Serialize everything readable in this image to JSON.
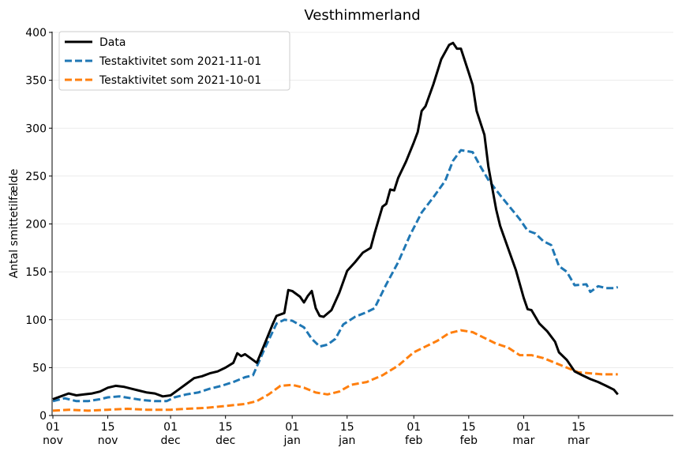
{
  "chart_data": {
    "type": "line",
    "title": "Vesthimmerland",
    "xlabel": "",
    "ylabel": "Antal smittetilfælde",
    "x_start": "2021-11-01",
    "x_end": "2022-03-25",
    "ylim": [
      0,
      405
    ],
    "grid": "horizontal",
    "legend_position": "top-left",
    "y_ticks": [
      0,
      50,
      100,
      150,
      200,
      250,
      300,
      350,
      400
    ],
    "x_ticks": [
      {
        "date": "2021-11-01",
        "day": "01",
        "month": "nov"
      },
      {
        "date": "2021-11-15",
        "day": "15",
        "month": "nov"
      },
      {
        "date": "2021-12-01",
        "day": "01",
        "month": "dec"
      },
      {
        "date": "2021-12-15",
        "day": "15",
        "month": "dec"
      },
      {
        "date": "2022-01-01",
        "day": "01",
        "month": "jan"
      },
      {
        "date": "2022-01-15",
        "day": "15",
        "month": "jan"
      },
      {
        "date": "2022-02-01",
        "day": "01",
        "month": "feb"
      },
      {
        "date": "2022-02-15",
        "day": "15",
        "month": "feb"
      },
      {
        "date": "2022-03-01",
        "day": "01",
        "month": "mar"
      },
      {
        "date": "2022-03-15",
        "day": "15",
        "month": "mar"
      }
    ],
    "series": [
      {
        "name": "Data",
        "color": "#000000",
        "dash": "solid",
        "points": [
          [
            "2021-11-01",
            17
          ],
          [
            "2021-11-03",
            20
          ],
          [
            "2021-11-05",
            23
          ],
          [
            "2021-11-07",
            21
          ],
          [
            "2021-11-09",
            22
          ],
          [
            "2021-11-11",
            23
          ],
          [
            "2021-11-13",
            25
          ],
          [
            "2021-11-15",
            29
          ],
          [
            "2021-11-17",
            31
          ],
          [
            "2021-11-19",
            30
          ],
          [
            "2021-11-21",
            28
          ],
          [
            "2021-11-23",
            26
          ],
          [
            "2021-11-25",
            24
          ],
          [
            "2021-11-27",
            23
          ],
          [
            "2021-11-29",
            20
          ],
          [
            "2021-12-01",
            21
          ],
          [
            "2021-12-03",
            27
          ],
          [
            "2021-12-05",
            33
          ],
          [
            "2021-12-07",
            39
          ],
          [
            "2021-12-09",
            41
          ],
          [
            "2021-12-11",
            44
          ],
          [
            "2021-12-13",
            46
          ],
          [
            "2021-12-15",
            50
          ],
          [
            "2021-12-17",
            55
          ],
          [
            "2021-12-18",
            65
          ],
          [
            "2021-12-19",
            62
          ],
          [
            "2021-12-20",
            64
          ],
          [
            "2021-12-22",
            58
          ],
          [
            "2021-12-23",
            55
          ],
          [
            "2021-12-25",
            75
          ],
          [
            "2021-12-27",
            95
          ],
          [
            "2021-12-28",
            104
          ],
          [
            "2021-12-30",
            107
          ],
          [
            "2021-12-31",
            131
          ],
          [
            "2022-01-01",
            130
          ],
          [
            "2022-01-03",
            124
          ],
          [
            "2022-01-04",
            118
          ],
          [
            "2022-01-05",
            125
          ],
          [
            "2022-01-06",
            130
          ],
          [
            "2022-01-07",
            112
          ],
          [
            "2022-01-08",
            104
          ],
          [
            "2022-01-09",
            103
          ],
          [
            "2022-01-11",
            110
          ],
          [
            "2022-01-13",
            128
          ],
          [
            "2022-01-15",
            151
          ],
          [
            "2022-01-17",
            160
          ],
          [
            "2022-01-19",
            170
          ],
          [
            "2022-01-21",
            175
          ],
          [
            "2022-01-22",
            190
          ],
          [
            "2022-01-24",
            218
          ],
          [
            "2022-01-25",
            221
          ],
          [
            "2022-01-26",
            236
          ],
          [
            "2022-01-27",
            235
          ],
          [
            "2022-01-28",
            248
          ],
          [
            "2022-01-30",
            265
          ],
          [
            "2022-02-01",
            285
          ],
          [
            "2022-02-02",
            296
          ],
          [
            "2022-02-03",
            318
          ],
          [
            "2022-02-04",
            323
          ],
          [
            "2022-02-06",
            346
          ],
          [
            "2022-02-08",
            372
          ],
          [
            "2022-02-10",
            387
          ],
          [
            "2022-02-11",
            389
          ],
          [
            "2022-02-12",
            383
          ],
          [
            "2022-02-13",
            383
          ],
          [
            "2022-02-15",
            358
          ],
          [
            "2022-02-16",
            345
          ],
          [
            "2022-02-17",
            318
          ],
          [
            "2022-02-19",
            293
          ],
          [
            "2022-02-20",
            260
          ],
          [
            "2022-02-22",
            215
          ],
          [
            "2022-02-23",
            198
          ],
          [
            "2022-02-25",
            175
          ],
          [
            "2022-02-27",
            152
          ],
          [
            "2022-03-01",
            123
          ],
          [
            "2022-03-02",
            111
          ],
          [
            "2022-03-03",
            110
          ],
          [
            "2022-03-05",
            96
          ],
          [
            "2022-03-07",
            88
          ],
          [
            "2022-03-09",
            77
          ],
          [
            "2022-03-10",
            66
          ],
          [
            "2022-03-12",
            58
          ],
          [
            "2022-03-14",
            46
          ],
          [
            "2022-03-16",
            42
          ],
          [
            "2022-03-18",
            38
          ],
          [
            "2022-03-20",
            35
          ],
          [
            "2022-03-22",
            31
          ],
          [
            "2022-03-24",
            27
          ],
          [
            "2022-03-25",
            22
          ]
        ]
      },
      {
        "name": "Testaktivitet som 2021-11-01",
        "color": "#1f77b4",
        "dash": "dashed",
        "points": [
          [
            "2021-11-01",
            15
          ],
          [
            "2021-11-04",
            18
          ],
          [
            "2021-11-07",
            15
          ],
          [
            "2021-11-10",
            15
          ],
          [
            "2021-11-13",
            17
          ],
          [
            "2021-11-15",
            19
          ],
          [
            "2021-11-18",
            20
          ],
          [
            "2021-11-21",
            18
          ],
          [
            "2021-11-24",
            16
          ],
          [
            "2021-11-27",
            15
          ],
          [
            "2021-11-30",
            15
          ],
          [
            "2021-12-02",
            19
          ],
          [
            "2021-12-05",
            22
          ],
          [
            "2021-12-08",
            24
          ],
          [
            "2021-12-11",
            28
          ],
          [
            "2021-12-14",
            31
          ],
          [
            "2021-12-17",
            35
          ],
          [
            "2021-12-20",
            40
          ],
          [
            "2021-12-22",
            42
          ],
          [
            "2021-12-25",
            70
          ],
          [
            "2021-12-28",
            96
          ],
          [
            "2021-12-30",
            100
          ],
          [
            "2022-01-01",
            99
          ],
          [
            "2022-01-04",
            92
          ],
          [
            "2022-01-06",
            80
          ],
          [
            "2022-01-08",
            72
          ],
          [
            "2022-01-10",
            74
          ],
          [
            "2022-01-12",
            80
          ],
          [
            "2022-01-14",
            95
          ],
          [
            "2022-01-17",
            103
          ],
          [
            "2022-01-20",
            108
          ],
          [
            "2022-01-22",
            112
          ],
          [
            "2022-01-25",
            137
          ],
          [
            "2022-01-28",
            160
          ],
          [
            "2022-01-31",
            188
          ],
          [
            "2022-02-03",
            212
          ],
          [
            "2022-02-06",
            228
          ],
          [
            "2022-02-09",
            245
          ],
          [
            "2022-02-11",
            266
          ],
          [
            "2022-02-13",
            277
          ],
          [
            "2022-02-16",
            275
          ],
          [
            "2022-02-18",
            260
          ],
          [
            "2022-02-20",
            246
          ],
          [
            "2022-02-23",
            230
          ],
          [
            "2022-02-26",
            215
          ],
          [
            "2022-02-28",
            205
          ],
          [
            "2022-03-02",
            193
          ],
          [
            "2022-03-04",
            190
          ],
          [
            "2022-03-06",
            182
          ],
          [
            "2022-03-08",
            178
          ],
          [
            "2022-03-10",
            156
          ],
          [
            "2022-03-12",
            150
          ],
          [
            "2022-03-14",
            136
          ],
          [
            "2022-03-17",
            137
          ],
          [
            "2022-03-18",
            129
          ],
          [
            "2022-03-20",
            135
          ],
          [
            "2022-03-22",
            133
          ],
          [
            "2022-03-24",
            133
          ],
          [
            "2022-03-25",
            134
          ]
        ]
      },
      {
        "name": "Testaktivitet som 2021-10-01",
        "color": "#ff7f0e",
        "dash": "dashed",
        "points": [
          [
            "2021-11-01",
            5
          ],
          [
            "2021-11-05",
            6
          ],
          [
            "2021-11-10",
            5
          ],
          [
            "2021-11-15",
            6
          ],
          [
            "2021-11-20",
            7
          ],
          [
            "2021-11-25",
            6
          ],
          [
            "2021-12-01",
            6
          ],
          [
            "2021-12-05",
            7
          ],
          [
            "2021-12-10",
            8
          ],
          [
            "2021-12-15",
            10
          ],
          [
            "2021-12-20",
            12
          ],
          [
            "2021-12-23",
            15
          ],
          [
            "2021-12-26",
            22
          ],
          [
            "2021-12-29",
            31
          ],
          [
            "2022-01-01",
            32
          ],
          [
            "2022-01-04",
            29
          ],
          [
            "2022-01-07",
            24
          ],
          [
            "2022-01-10",
            22
          ],
          [
            "2022-01-13",
            25
          ],
          [
            "2022-01-16",
            32
          ],
          [
            "2022-01-20",
            35
          ],
          [
            "2022-01-24",
            42
          ],
          [
            "2022-01-28",
            52
          ],
          [
            "2022-02-01",
            66
          ],
          [
            "2022-02-04",
            72
          ],
          [
            "2022-02-07",
            78
          ],
          [
            "2022-02-10",
            86
          ],
          [
            "2022-02-13",
            89
          ],
          [
            "2022-02-16",
            87
          ],
          [
            "2022-02-19",
            81
          ],
          [
            "2022-02-22",
            75
          ],
          [
            "2022-02-25",
            71
          ],
          [
            "2022-02-28",
            63
          ],
          [
            "2022-03-03",
            63
          ],
          [
            "2022-03-06",
            60
          ],
          [
            "2022-03-09",
            55
          ],
          [
            "2022-03-12",
            50
          ],
          [
            "2022-03-15",
            45
          ],
          [
            "2022-03-18",
            44
          ],
          [
            "2022-03-21",
            43
          ],
          [
            "2022-03-25",
            43
          ]
        ]
      }
    ]
  }
}
